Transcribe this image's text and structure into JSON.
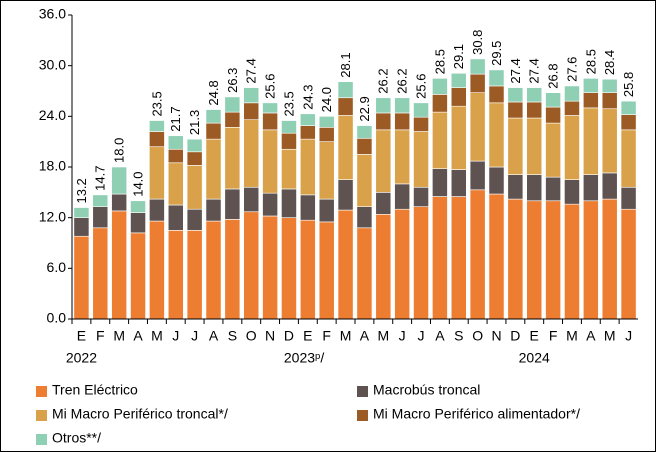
{
  "chart_data": {
    "type": "stacked_bar",
    "categories": [
      "E",
      "F",
      "M",
      "A",
      "M",
      "J",
      "J",
      "A",
      "S",
      "O",
      "N",
      "D",
      "E",
      "F",
      "M",
      "A",
      "M",
      "J",
      "J",
      "A",
      "S",
      "O",
      "N",
      "D",
      "E",
      "F",
      "M",
      "A",
      "M",
      "J"
    ],
    "years": [
      "2022",
      "2023ᵖ/",
      "2024"
    ],
    "series": [
      {
        "name": "Tren Eléctrico",
        "color": "#ED7D31",
        "values": [
          9.8,
          10.8,
          12.8,
          10.2,
          11.6,
          10.5,
          10.5,
          11.6,
          11.8,
          12.7,
          12.2,
          12.0,
          11.7,
          11.5,
          12.9,
          10.8,
          12.4,
          13.0,
          13.3,
          14.5,
          14.5,
          15.3,
          14.8,
          14.2,
          14.0,
          14.0,
          13.6,
          14.0,
          14.2,
          13.0
        ]
      },
      {
        "name": "Macrobús troncal",
        "color": "#5E5350",
        "values": [
          2.2,
          2.5,
          2.0,
          2.4,
          2.6,
          3.0,
          2.5,
          2.6,
          3.6,
          2.9,
          2.7,
          3.4,
          3.0,
          2.7,
          3.6,
          2.5,
          2.6,
          3.0,
          2.3,
          3.3,
          3.2,
          3.4,
          3.2,
          2.9,
          3.1,
          2.8,
          2.9,
          3.1,
          3.1,
          2.6
        ]
      },
      {
        "name": "Mi Macro Periférico troncal*/",
        "color": "#D9A24A",
        "values": [
          0,
          0,
          0,
          0,
          6.2,
          5.0,
          5.2,
          7.1,
          7.3,
          8.0,
          7.5,
          4.7,
          6.6,
          6.8,
          7.6,
          6.2,
          7.4,
          6.4,
          6.6,
          6.7,
          7.5,
          8.1,
          7.6,
          6.7,
          6.7,
          6.4,
          7.6,
          7.9,
          7.6,
          6.8
        ]
      },
      {
        "name": "Mi Macro Periférico alimentador*/",
        "color": "#9C5B24",
        "values": [
          0,
          0,
          0,
          0,
          1.8,
          1.6,
          1.6,
          1.9,
          1.8,
          2.0,
          2.0,
          1.9,
          1.6,
          1.7,
          2.1,
          1.9,
          2.0,
          2.0,
          1.7,
          2.1,
          2.2,
          2.2,
          2.0,
          1.9,
          1.9,
          1.9,
          1.7,
          1.8,
          1.9,
          1.8
        ]
      },
      {
        "name": "Otros**/",
        "color": "#8FD0B5",
        "values": [
          1.2,
          1.4,
          3.2,
          1.4,
          1.3,
          1.6,
          1.5,
          1.6,
          1.8,
          1.8,
          1.2,
          1.5,
          1.4,
          1.3,
          1.9,
          1.5,
          1.8,
          1.8,
          1.7,
          1.9,
          1.7,
          1.8,
          1.9,
          1.7,
          1.7,
          1.7,
          1.8,
          1.7,
          1.6,
          1.6
        ]
      }
    ],
    "total_labels": [
      "13.2",
      "14.7",
      "18.0",
      "14.0",
      "23.5",
      "21.7",
      "21.3",
      "24.8",
      "26.3",
      "27.4",
      "25.6",
      "23.5",
      "24.3",
      "24.0",
      "28.1",
      "22.9",
      "26.2",
      "26.2",
      "25.6",
      "28.5",
      "29.1",
      "30.8",
      "29.5",
      "27.4",
      "27.4",
      "26.8",
      "27.6",
      "28.5",
      "28.4",
      "25.8"
    ],
    "ylim": [
      0,
      36
    ],
    "yticks": [
      {
        "value": 0,
        "label": "0.0"
      },
      {
        "value": 6,
        "label": "6.0"
      },
      {
        "value": 12,
        "label": "12.0"
      },
      {
        "value": 18,
        "label": "18.0"
      },
      {
        "value": 24,
        "label": "24.0"
      },
      {
        "value": 30,
        "label": "30.0"
      },
      {
        "value": 36,
        "label": "36.0"
      }
    ]
  }
}
